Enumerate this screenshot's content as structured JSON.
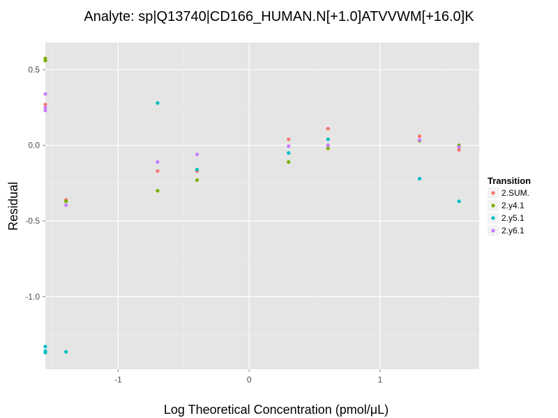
{
  "chart_data": {
    "type": "scatter",
    "title": "Analyte: sp|Q13740|CD166_HUMAN.N[+1.0]ATVVWM[+16.0]K",
    "xlabel": "Log Theoretical Concentration (pmol/μL)",
    "ylabel": "Residual",
    "xlim": [
      -1.556,
      1.756
    ],
    "ylim": [
      -1.48,
      0.68
    ],
    "x_ticks": [
      -1,
      0,
      1
    ],
    "x_tick_labels": [
      "-1",
      "0",
      "1"
    ],
    "y_ticks": [
      0.5,
      0.0,
      -0.5,
      -1.0
    ],
    "y_tick_labels": [
      "0.5",
      "0.0",
      "-0.5",
      "-1.0"
    ],
    "grid": true,
    "legend": {
      "title": "Transition",
      "position": "right"
    },
    "series": [
      {
        "name": "2.SUM.",
        "color": "#F8766D",
        "points": [
          [
            -1.556,
            0.27
          ],
          [
            -1.398,
            -0.36
          ],
          [
            -0.699,
            -0.17
          ],
          [
            -0.398,
            -0.17
          ],
          [
            0.301,
            0.04
          ],
          [
            0.602,
            0.11
          ],
          [
            1.301,
            0.06
          ],
          [
            1.602,
            -0.03
          ]
        ]
      },
      {
        "name": "2.y4.1",
        "color": "#7CAE00",
        "points": [
          [
            -1.556,
            0.56
          ],
          [
            -1.556,
            0.575
          ],
          [
            -1.398,
            -0.37
          ],
          [
            -0.699,
            -0.3
          ],
          [
            -0.398,
            -0.23
          ],
          [
            0.301,
            -0.11
          ],
          [
            0.602,
            -0.02
          ],
          [
            1.301,
            0.03
          ],
          [
            1.602,
            0.0
          ]
        ]
      },
      {
        "name": "2.y5.1",
        "color": "#00BFC4",
        "points": [
          [
            -1.556,
            -1.33
          ],
          [
            -1.556,
            -1.36
          ],
          [
            -1.556,
            -1.37
          ],
          [
            -1.398,
            -1.365
          ],
          [
            -0.699,
            0.28
          ],
          [
            -0.398,
            -0.16
          ],
          [
            0.301,
            -0.05
          ],
          [
            0.602,
            0.04
          ],
          [
            1.301,
            -0.22
          ],
          [
            1.602,
            -0.37
          ]
        ]
      },
      {
        "name": "2.y6.1",
        "color": "#C77CFF",
        "points": [
          [
            -1.556,
            0.34
          ],
          [
            -1.556,
            0.23
          ],
          [
            -1.556,
            0.25
          ],
          [
            -1.398,
            -0.395
          ],
          [
            -0.699,
            -0.11
          ],
          [
            -0.398,
            -0.06
          ],
          [
            0.301,
            -0.005
          ],
          [
            0.602,
            0.0
          ],
          [
            1.301,
            0.035
          ],
          [
            1.602,
            -0.01
          ]
        ]
      }
    ]
  }
}
